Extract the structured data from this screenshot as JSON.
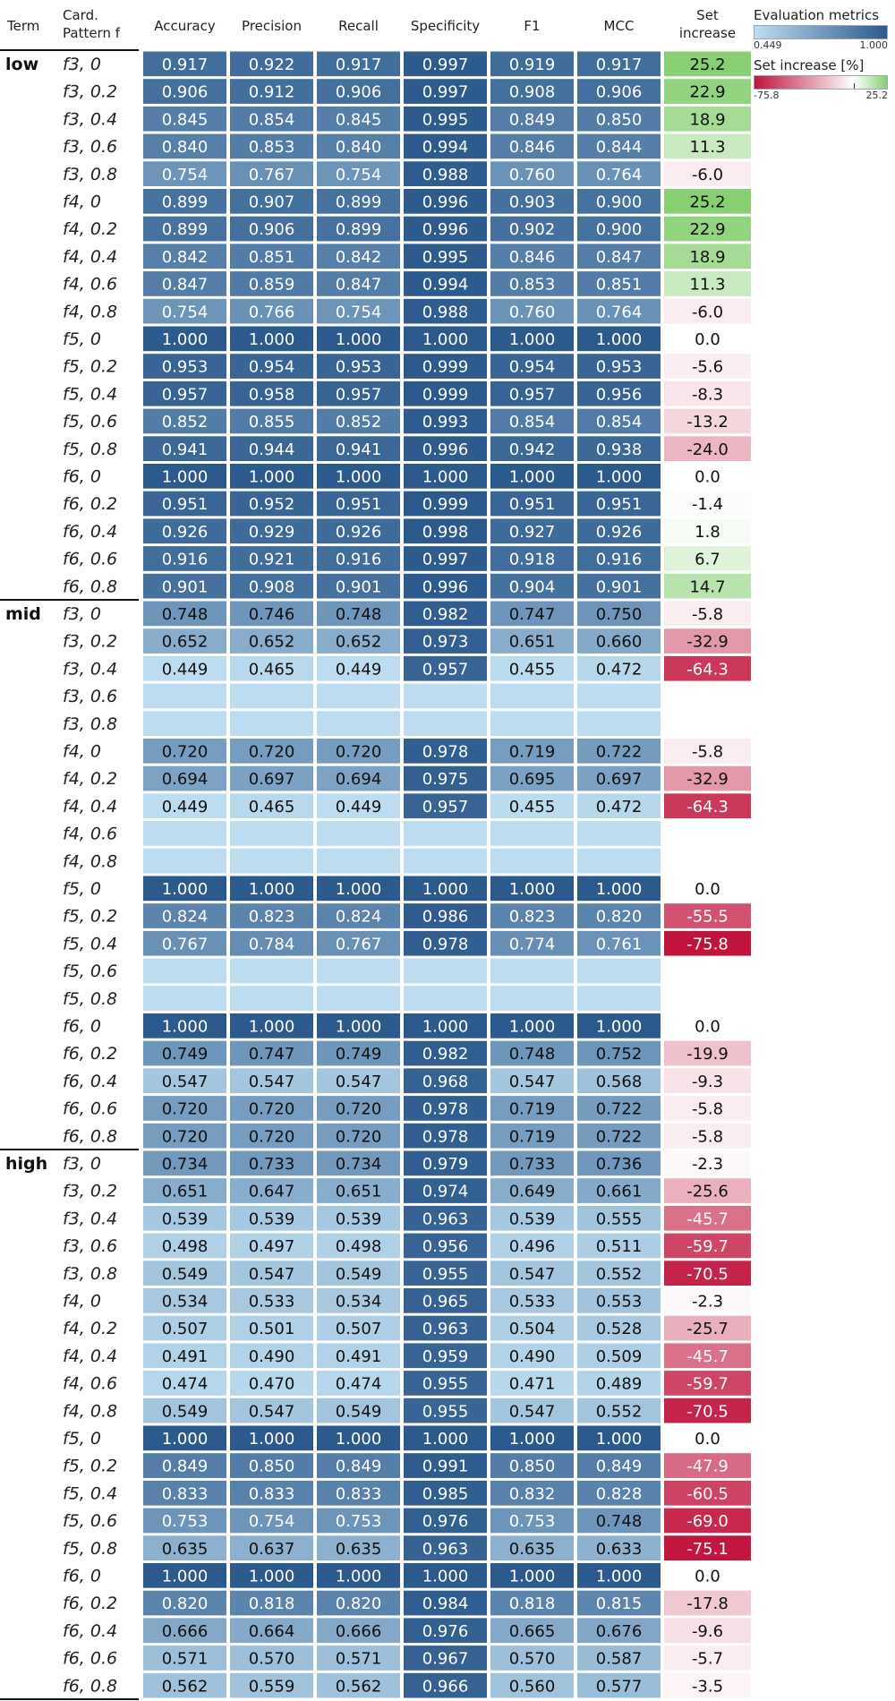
{
  "chart_data": {
    "type": "heatmap",
    "columns": {
      "term": "Term",
      "pattern": [
        "Card.",
        "Pattern f"
      ],
      "metrics": [
        "Accuracy",
        "Precision",
        "Recall",
        "Specificity",
        "F1",
        "MCC"
      ],
      "set_increase": [
        "Set",
        "increase"
      ]
    },
    "legends": {
      "metrics": {
        "title": "Evaluation metrics",
        "min": 0.449,
        "max": 1.0,
        "min_label": "0.449",
        "max_label": "1.000"
      },
      "set_increase": {
        "title": "Set increase [%]",
        "min": -75.8,
        "max": 25.2,
        "min_label": "-75.8",
        "max_label": "25.2"
      }
    },
    "groups": [
      {
        "term": "low",
        "rows": [
          {
            "pattern": "f3, 0",
            "values": [
              0.917,
              0.922,
              0.917,
              0.997,
              0.919,
              0.917
            ],
            "set_increase": 25.2
          },
          {
            "pattern": "f3, 0.2",
            "values": [
              0.906,
              0.912,
              0.906,
              0.997,
              0.908,
              0.906
            ],
            "set_increase": 22.9
          },
          {
            "pattern": "f3, 0.4",
            "values": [
              0.845,
              0.854,
              0.845,
              0.995,
              0.849,
              0.85
            ],
            "set_increase": 18.9
          },
          {
            "pattern": "f3, 0.6",
            "values": [
              0.84,
              0.853,
              0.84,
              0.994,
              0.846,
              0.844
            ],
            "set_increase": 11.3
          },
          {
            "pattern": "f3, 0.8",
            "values": [
              0.754,
              0.767,
              0.754,
              0.988,
              0.76,
              0.764
            ],
            "set_increase": -6.0
          },
          {
            "pattern": "f4, 0",
            "values": [
              0.899,
              0.907,
              0.899,
              0.996,
              0.903,
              0.9
            ],
            "set_increase": 25.2
          },
          {
            "pattern": "f4, 0.2",
            "values": [
              0.899,
              0.906,
              0.899,
              0.996,
              0.902,
              0.9
            ],
            "set_increase": 22.9
          },
          {
            "pattern": "f4, 0.4",
            "values": [
              0.842,
              0.851,
              0.842,
              0.995,
              0.846,
              0.847
            ],
            "set_increase": 18.9
          },
          {
            "pattern": "f4, 0.6",
            "values": [
              0.847,
              0.859,
              0.847,
              0.994,
              0.853,
              0.851
            ],
            "set_increase": 11.3
          },
          {
            "pattern": "f4, 0.8",
            "values": [
              0.754,
              0.766,
              0.754,
              0.988,
              0.76,
              0.764
            ],
            "set_increase": -6.0
          },
          {
            "pattern": "f5, 0",
            "values": [
              1.0,
              1.0,
              1.0,
              1.0,
              1.0,
              1.0
            ],
            "set_increase": 0.0
          },
          {
            "pattern": "f5, 0.2",
            "values": [
              0.953,
              0.954,
              0.953,
              0.999,
              0.954,
              0.953
            ],
            "set_increase": -5.6
          },
          {
            "pattern": "f5, 0.4",
            "values": [
              0.957,
              0.958,
              0.957,
              0.999,
              0.957,
              0.956
            ],
            "set_increase": -8.3
          },
          {
            "pattern": "f5, 0.6",
            "values": [
              0.852,
              0.855,
              0.852,
              0.993,
              0.854,
              0.854
            ],
            "set_increase": -13.2
          },
          {
            "pattern": "f5, 0.8",
            "values": [
              0.941,
              0.944,
              0.941,
              0.996,
              0.942,
              0.938
            ],
            "set_increase": -24.0
          },
          {
            "pattern": "f6, 0",
            "values": [
              1.0,
              1.0,
              1.0,
              1.0,
              1.0,
              1.0
            ],
            "set_increase": 0.0
          },
          {
            "pattern": "f6, 0.2",
            "values": [
              0.951,
              0.952,
              0.951,
              0.999,
              0.951,
              0.951
            ],
            "set_increase": -1.4
          },
          {
            "pattern": "f6, 0.4",
            "values": [
              0.926,
              0.929,
              0.926,
              0.998,
              0.927,
              0.926
            ],
            "set_increase": 1.8
          },
          {
            "pattern": "f6, 0.6",
            "values": [
              0.916,
              0.921,
              0.916,
              0.997,
              0.918,
              0.916
            ],
            "set_increase": 6.7
          },
          {
            "pattern": "f6, 0.8",
            "values": [
              0.901,
              0.908,
              0.901,
              0.996,
              0.904,
              0.901
            ],
            "set_increase": 14.7
          }
        ]
      },
      {
        "term": "mid",
        "rows": [
          {
            "pattern": "f3, 0",
            "values": [
              0.748,
              0.746,
              0.748,
              0.982,
              0.747,
              0.75
            ],
            "set_increase": -5.8
          },
          {
            "pattern": "f3, 0.2",
            "values": [
              0.652,
              0.652,
              0.652,
              0.973,
              0.651,
              0.66
            ],
            "set_increase": -32.9
          },
          {
            "pattern": "f3, 0.4",
            "values": [
              0.449,
              0.465,
              0.449,
              0.957,
              0.455,
              0.472
            ],
            "set_increase": -64.3
          },
          {
            "pattern": "f3, 0.6",
            "values": null,
            "set_increase": null
          },
          {
            "pattern": "f3, 0.8",
            "values": null,
            "set_increase": null
          },
          {
            "pattern": "f4, 0",
            "values": [
              0.72,
              0.72,
              0.72,
              0.978,
              0.719,
              0.722
            ],
            "set_increase": -5.8
          },
          {
            "pattern": "f4, 0.2",
            "values": [
              0.694,
              0.697,
              0.694,
              0.975,
              0.695,
              0.697
            ],
            "set_increase": -32.9
          },
          {
            "pattern": "f4, 0.4",
            "values": [
              0.449,
              0.465,
              0.449,
              0.957,
              0.455,
              0.472
            ],
            "set_increase": -64.3
          },
          {
            "pattern": "f4, 0.6",
            "values": null,
            "set_increase": null
          },
          {
            "pattern": "f4, 0.8",
            "values": null,
            "set_increase": null
          },
          {
            "pattern": "f5, 0",
            "values": [
              1.0,
              1.0,
              1.0,
              1.0,
              1.0,
              1.0
            ],
            "set_increase": 0.0
          },
          {
            "pattern": "f5, 0.2",
            "values": [
              0.824,
              0.823,
              0.824,
              0.986,
              0.823,
              0.82
            ],
            "set_increase": -55.5
          },
          {
            "pattern": "f5, 0.4",
            "values": [
              0.767,
              0.784,
              0.767,
              0.978,
              0.774,
              0.761
            ],
            "set_increase": -75.8
          },
          {
            "pattern": "f5, 0.6",
            "values": null,
            "set_increase": null
          },
          {
            "pattern": "f5, 0.8",
            "values": null,
            "set_increase": null
          },
          {
            "pattern": "f6, 0",
            "values": [
              1.0,
              1.0,
              1.0,
              1.0,
              1.0,
              1.0
            ],
            "set_increase": 0.0
          },
          {
            "pattern": "f6, 0.2",
            "values": [
              0.749,
              0.747,
              0.749,
              0.982,
              0.748,
              0.752
            ],
            "set_increase": -19.9
          },
          {
            "pattern": "f6, 0.4",
            "values": [
              0.547,
              0.547,
              0.547,
              0.968,
              0.547,
              0.568
            ],
            "set_increase": -9.3
          },
          {
            "pattern": "f6, 0.6",
            "values": [
              0.72,
              0.72,
              0.72,
              0.978,
              0.719,
              0.722
            ],
            "set_increase": -5.8
          },
          {
            "pattern": "f6, 0.8",
            "values": [
              0.72,
              0.72,
              0.72,
              0.978,
              0.719,
              0.722
            ],
            "set_increase": -5.8
          }
        ]
      },
      {
        "term": "high",
        "rows": [
          {
            "pattern": "f3, 0",
            "values": [
              0.734,
              0.733,
              0.734,
              0.979,
              0.733,
              0.736
            ],
            "set_increase": -2.3
          },
          {
            "pattern": "f3, 0.2",
            "values": [
              0.651,
              0.647,
              0.651,
              0.974,
              0.649,
              0.661
            ],
            "set_increase": -25.6
          },
          {
            "pattern": "f3, 0.4",
            "values": [
              0.539,
              0.539,
              0.539,
              0.963,
              0.539,
              0.555
            ],
            "set_increase": -45.7
          },
          {
            "pattern": "f3, 0.6",
            "values": [
              0.498,
              0.497,
              0.498,
              0.956,
              0.496,
              0.511
            ],
            "set_increase": -59.7
          },
          {
            "pattern": "f3, 0.8",
            "values": [
              0.549,
              0.547,
              0.549,
              0.955,
              0.547,
              0.552
            ],
            "set_increase": -70.5
          },
          {
            "pattern": "f4, 0",
            "values": [
              0.534,
              0.533,
              0.534,
              0.965,
              0.533,
              0.553
            ],
            "set_increase": -2.3
          },
          {
            "pattern": "f4, 0.2",
            "values": [
              0.507,
              0.501,
              0.507,
              0.963,
              0.504,
              0.528
            ],
            "set_increase": -25.7
          },
          {
            "pattern": "f4, 0.4",
            "values": [
              0.491,
              0.49,
              0.491,
              0.959,
              0.49,
              0.509
            ],
            "set_increase": -45.7
          },
          {
            "pattern": "f4, 0.6",
            "values": [
              0.474,
              0.47,
              0.474,
              0.955,
              0.471,
              0.489
            ],
            "set_increase": -59.7
          },
          {
            "pattern": "f4, 0.8",
            "values": [
              0.549,
              0.547,
              0.549,
              0.955,
              0.547,
              0.552
            ],
            "set_increase": -70.5
          },
          {
            "pattern": "f5, 0",
            "values": [
              1.0,
              1.0,
              1.0,
              1.0,
              1.0,
              1.0
            ],
            "set_increase": 0.0
          },
          {
            "pattern": "f5, 0.2",
            "values": [
              0.849,
              0.85,
              0.849,
              0.991,
              0.85,
              0.849
            ],
            "set_increase": -47.9
          },
          {
            "pattern": "f5, 0.4",
            "values": [
              0.833,
              0.833,
              0.833,
              0.985,
              0.832,
              0.828
            ],
            "set_increase": -60.5
          },
          {
            "pattern": "f5, 0.6",
            "values": [
              0.753,
              0.754,
              0.753,
              0.976,
              0.753,
              0.748
            ],
            "set_increase": -69.0
          },
          {
            "pattern": "f5, 0.8",
            "values": [
              0.635,
              0.637,
              0.635,
              0.963,
              0.635,
              0.633
            ],
            "set_increase": -75.1
          },
          {
            "pattern": "f6, 0",
            "values": [
              1.0,
              1.0,
              1.0,
              1.0,
              1.0,
              1.0
            ],
            "set_increase": 0.0
          },
          {
            "pattern": "f6, 0.2",
            "values": [
              0.82,
              0.818,
              0.82,
              0.984,
              0.818,
              0.815
            ],
            "set_increase": -17.8
          },
          {
            "pattern": "f6, 0.4",
            "values": [
              0.666,
              0.664,
              0.666,
              0.976,
              0.665,
              0.676
            ],
            "set_increase": -9.6
          },
          {
            "pattern": "f6, 0.6",
            "values": [
              0.571,
              0.57,
              0.571,
              0.967,
              0.57,
              0.587
            ],
            "set_increase": -5.7
          },
          {
            "pattern": "f6, 0.8",
            "values": [
              0.562,
              0.559,
              0.562,
              0.966,
              0.56,
              0.577
            ],
            "set_increase": -3.5
          }
        ]
      }
    ],
    "colors": {
      "metric_low": "#bddcef",
      "metric_high": "#2c5a8d",
      "set_neg": "#c0143c",
      "set_zero": "#ffffff",
      "set_pos": "#87cf72",
      "empty_cell": "#bddcef"
    }
  }
}
